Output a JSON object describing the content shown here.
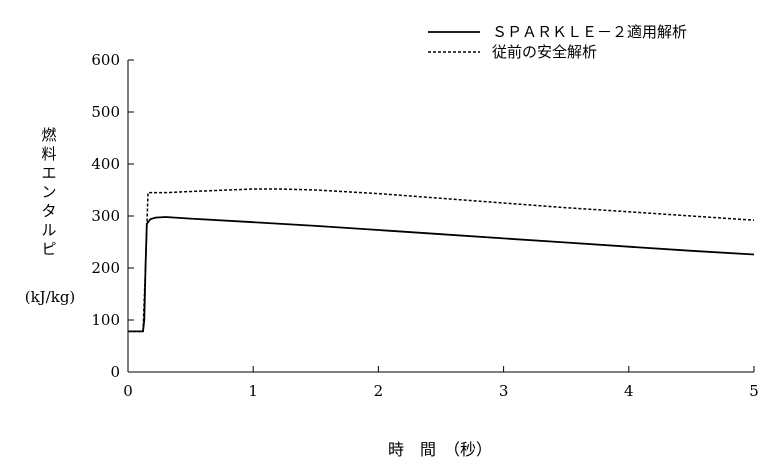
{
  "chart_data": {
    "type": "line",
    "title": "",
    "xlabel": "時　間　（秒）",
    "ylabel": [
      "燃",
      "料",
      "エ",
      "ン",
      "タ",
      "ル",
      "ピ"
    ],
    "yunit": "(kJ/kg)",
    "xlim": [
      0,
      5
    ],
    "ylim": [
      0,
      600
    ],
    "xticks": [
      0,
      1,
      2,
      3,
      4,
      5
    ],
    "yticks": [
      0,
      100,
      200,
      300,
      400,
      500,
      600
    ],
    "grid": false,
    "legend_position": "top-right",
    "series": [
      {
        "name": "ＳＰＡＲＫＬＥ－２適用解析",
        "style": "solid",
        "color": "#000000",
        "x": [
          0,
          0.12,
          0.13,
          0.14,
          0.15,
          0.18,
          0.22,
          0.3,
          0.5,
          1.0,
          1.5,
          2.0,
          2.5,
          3.0,
          3.5,
          4.0,
          4.5,
          5.0
        ],
        "y": [
          78,
          78,
          100,
          200,
          285,
          294,
          297,
          298,
          295,
          288,
          281,
          273,
          265,
          257,
          249,
          241,
          233,
          226
        ]
      },
      {
        "name": "従前の安全解析",
        "style": "dotted",
        "color": "#000000",
        "x": [
          0,
          0.12,
          0.14,
          0.16,
          0.3,
          0.6,
          1.0,
          1.2,
          1.5,
          2.0,
          2.5,
          3.0,
          3.5,
          4.0,
          4.5,
          5.0
        ],
        "y": [
          78,
          78,
          200,
          345,
          345,
          348,
          352,
          352,
          350,
          343,
          334,
          325,
          316,
          308,
          300,
          292
        ]
      }
    ]
  }
}
